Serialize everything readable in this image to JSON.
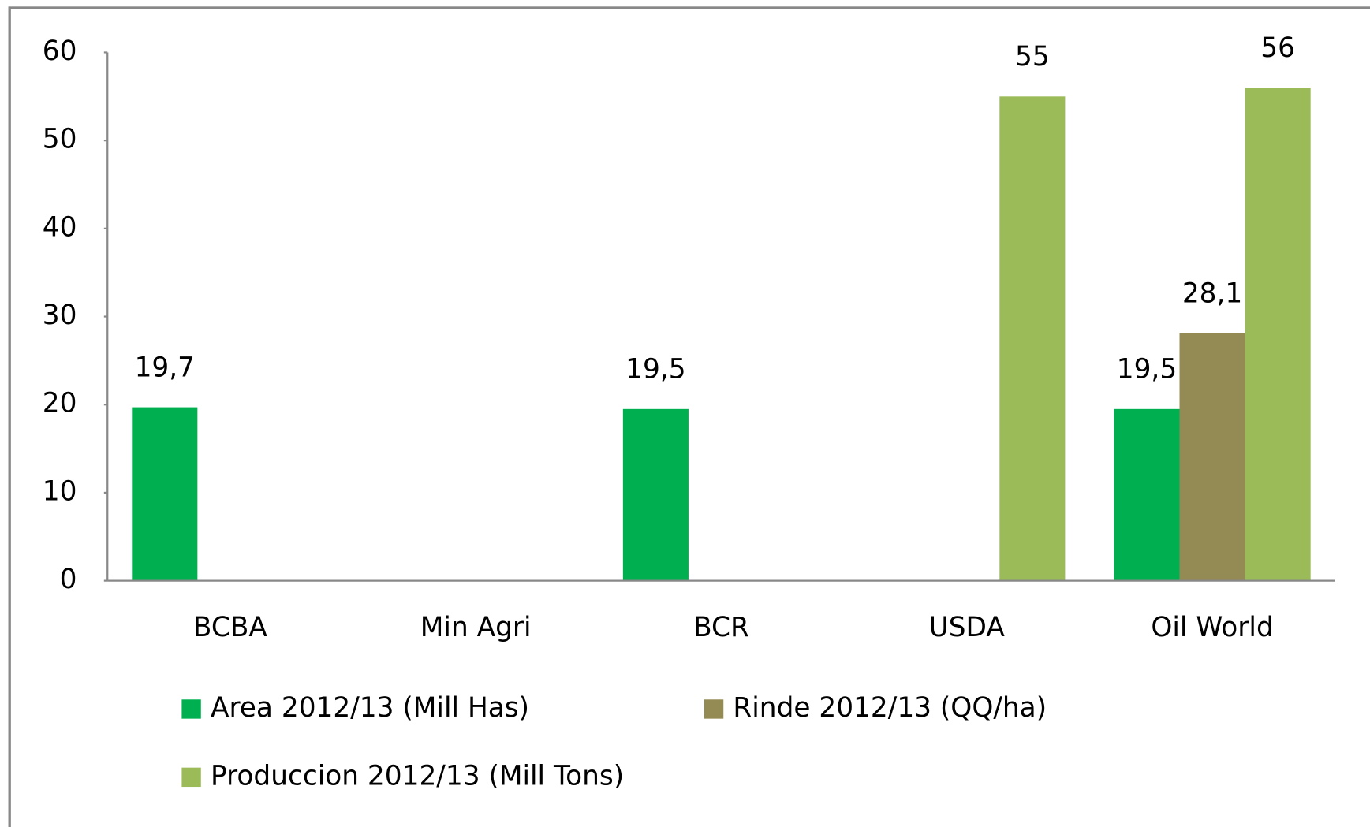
{
  "chart_data": {
    "type": "bar",
    "categories": [
      "BCBA",
      "Min Agri",
      "BCR",
      "USDA",
      "Oil World"
    ],
    "series": [
      {
        "name": "Area 2012/13 (Mill Has)",
        "color": "#00b050",
        "values": [
          19.7,
          null,
          19.5,
          null,
          19.5
        ],
        "value_labels": [
          "19,7",
          null,
          "19,5",
          null,
          "19,5"
        ]
      },
      {
        "name": "Rinde 2012/13 (QQ/ha)",
        "color": "#948a54",
        "values": [
          null,
          null,
          null,
          null,
          28.1
        ],
        "value_labels": [
          null,
          null,
          null,
          null,
          "28,1"
        ]
      },
      {
        "name": "Produccion 2012/13 (Mill Tons)",
        "color": "#9bbb59",
        "values": [
          null,
          null,
          null,
          55,
          56
        ]
      }
    ],
    "ylim": [
      0,
      60
    ],
    "yticks": [
      0,
      10,
      20,
      30,
      40,
      50,
      60
    ],
    "grid": false,
    "legend": "bottom"
  }
}
